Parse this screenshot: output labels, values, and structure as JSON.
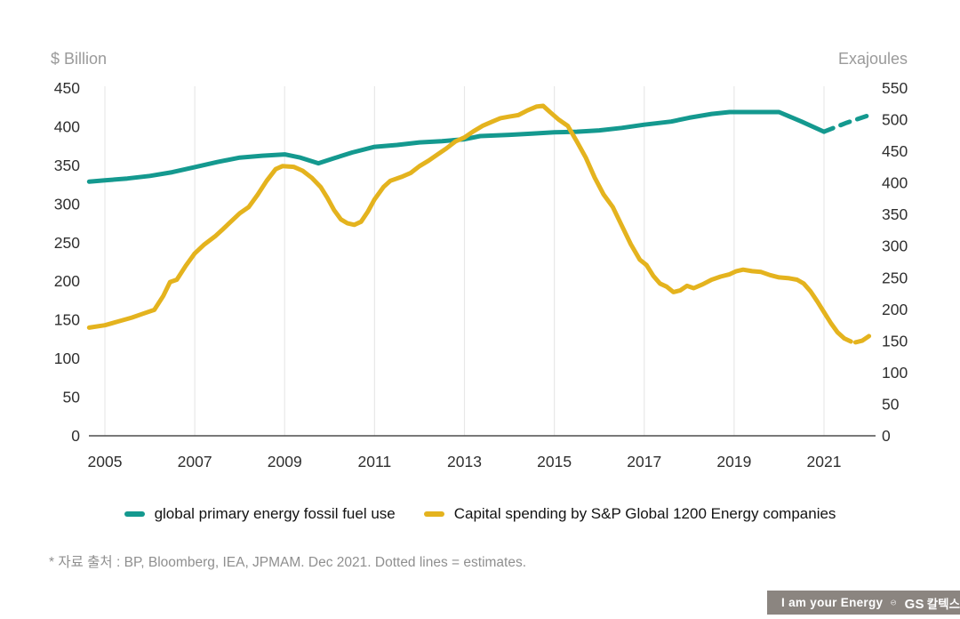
{
  "footnote": "* 자료 출처 : BP, Bloomberg, IEA, JPMAM. Dec 2021. Dotted lines = estimates.",
  "badge": {
    "slogan": "I am your Energy",
    "brand_gs": "GS",
    "brand_kr": "칼텍스",
    "background": "#8b8580",
    "logo": "gs-caltex-swirl-icon"
  },
  "colors": {
    "fossil_line": "#14998f",
    "capex_line": "#e4b31e",
    "gridline": "#e8e8e8",
    "axis_line": "#4d4d4d",
    "tick_text": "#2f2f2f",
    "unit_text": "#9a9a9a"
  },
  "chart_data": {
    "type": "line",
    "title": "",
    "note": "Dotted lines = estimates",
    "grid": "vertical-only",
    "legend_position": "bottom-center",
    "left_axis": {
      "label": "$ Billion",
      "min": 0,
      "max": 450,
      "tick_step": 50,
      "ticks": [
        "450",
        "400",
        "350",
        "300",
        "250",
        "200",
        "150",
        "100",
        "50",
        "0"
      ]
    },
    "right_axis": {
      "label": "Exajoules",
      "min": 0,
      "max": 550,
      "tick_step": 50,
      "ticks": [
        "550",
        "500",
        "450",
        "400",
        "350",
        "300",
        "250",
        "200",
        "150",
        "100",
        "50",
        "0"
      ]
    },
    "x_axis": {
      "start": 2004.65,
      "end": 2022.05,
      "year_labels": [
        "2005",
        "2007",
        "2009",
        "2011",
        "2013",
        "2015",
        "2017",
        "2019",
        "2021"
      ]
    },
    "series": [
      {
        "name": "global primary energy fossil fuel use",
        "axis": "right",
        "unit": "Exajoules",
        "color": "#14998f",
        "points": [
          [
            2004.65,
            402
          ],
          [
            2005,
            404
          ],
          [
            2005.5,
            407
          ],
          [
            2006,
            411
          ],
          [
            2006.5,
            417
          ],
          [
            2007,
            425
          ],
          [
            2007.5,
            433
          ],
          [
            2008,
            440
          ],
          [
            2008.5,
            443
          ],
          [
            2009,
            445
          ],
          [
            2009.35,
            440
          ],
          [
            2009.75,
            431
          ],
          [
            2010.1,
            439
          ],
          [
            2010.5,
            448
          ],
          [
            2011,
            457
          ],
          [
            2011.5,
            460
          ],
          [
            2012,
            464
          ],
          [
            2012.5,
            466
          ],
          [
            2013,
            469
          ],
          [
            2013.35,
            474
          ],
          [
            2014,
            476
          ],
          [
            2014.5,
            478
          ],
          [
            2015,
            480
          ],
          [
            2015.5,
            481
          ],
          [
            2016,
            483
          ],
          [
            2016.5,
            487
          ],
          [
            2017,
            492
          ],
          [
            2017.6,
            497
          ],
          [
            2018,
            503
          ],
          [
            2018.5,
            509
          ],
          [
            2018.9,
            512
          ],
          [
            2019.5,
            512
          ],
          [
            2020,
            512
          ],
          [
            2020.5,
            497
          ],
          [
            2021,
            481
          ]
        ],
        "dotted_points": [
          [
            2021,
            481
          ],
          [
            2021.5,
            495
          ],
          [
            2022,
            507
          ]
        ]
      },
      {
        "name": "Capital spending by S&P Global 1200 Energy companies",
        "axis": "left",
        "unit": "$ Billion",
        "color": "#e4b31e",
        "points": [
          [
            2004.65,
            140
          ],
          [
            2005,
            143
          ],
          [
            2005.3,
            148
          ],
          [
            2005.6,
            153
          ],
          [
            2005.85,
            158
          ],
          [
            2006.1,
            163
          ],
          [
            2006.3,
            181
          ],
          [
            2006.45,
            199
          ],
          [
            2006.6,
            202
          ],
          [
            2006.8,
            220
          ],
          [
            2007,
            236
          ],
          [
            2007.2,
            247
          ],
          [
            2007.45,
            258
          ],
          [
            2007.6,
            266
          ],
          [
            2007.8,
            277
          ],
          [
            2008,
            288
          ],
          [
            2008.2,
            296
          ],
          [
            2008.4,
            312
          ],
          [
            2008.6,
            330
          ],
          [
            2008.8,
            345
          ],
          [
            2008.95,
            349
          ],
          [
            2009.2,
            348
          ],
          [
            2009.4,
            343
          ],
          [
            2009.6,
            334
          ],
          [
            2009.8,
            322
          ],
          [
            2009.95,
            308
          ],
          [
            2010.1,
            292
          ],
          [
            2010.25,
            280
          ],
          [
            2010.4,
            275
          ],
          [
            2010.55,
            273
          ],
          [
            2010.7,
            277
          ],
          [
            2010.85,
            290
          ],
          [
            2011,
            306
          ],
          [
            2011.2,
            322
          ],
          [
            2011.35,
            330
          ],
          [
            2011.6,
            335
          ],
          [
            2011.8,
            340
          ],
          [
            2012,
            349
          ],
          [
            2012.2,
            356
          ],
          [
            2012.4,
            364
          ],
          [
            2012.6,
            372
          ],
          [
            2012.8,
            381
          ],
          [
            2013,
            386
          ],
          [
            2013.2,
            394
          ],
          [
            2013.4,
            401
          ],
          [
            2013.6,
            406
          ],
          [
            2013.8,
            411
          ],
          [
            2014,
            413
          ],
          [
            2014.2,
            415
          ],
          [
            2014.4,
            421
          ],
          [
            2014.6,
            426
          ],
          [
            2014.75,
            427
          ],
          [
            2014.9,
            419
          ],
          [
            2015.1,
            409
          ],
          [
            2015.3,
            401
          ],
          [
            2015.5,
            381
          ],
          [
            2015.7,
            360
          ],
          [
            2015.9,
            334
          ],
          [
            2016.1,
            312
          ],
          [
            2016.3,
            296
          ],
          [
            2016.5,
            272
          ],
          [
            2016.7,
            248
          ],
          [
            2016.9,
            228
          ],
          [
            2017.05,
            221
          ],
          [
            2017.2,
            207
          ],
          [
            2017.35,
            197
          ],
          [
            2017.5,
            193
          ],
          [
            2017.65,
            186
          ],
          [
            2017.8,
            188
          ],
          [
            2017.95,
            194
          ],
          [
            2018.1,
            191
          ],
          [
            2018.3,
            196
          ],
          [
            2018.5,
            202
          ],
          [
            2018.7,
            206
          ],
          [
            2018.9,
            209
          ],
          [
            2019.05,
            213
          ],
          [
            2019.2,
            215
          ],
          [
            2019.4,
            213
          ],
          [
            2019.6,
            212
          ],
          [
            2019.8,
            208
          ],
          [
            2020,
            205
          ],
          [
            2020.2,
            204
          ],
          [
            2020.4,
            202
          ],
          [
            2020.55,
            197
          ],
          [
            2020.7,
            187
          ],
          [
            2020.85,
            174
          ],
          [
            2021,
            160
          ],
          [
            2021.15,
            146
          ],
          [
            2021.3,
            134
          ],
          [
            2021.45,
            126
          ],
          [
            2021.6,
            122
          ]
        ],
        "dotted_points": [
          [
            2021.7,
            121
          ],
          [
            2021.85,
            123
          ],
          [
            2022,
            129
          ]
        ]
      }
    ]
  }
}
